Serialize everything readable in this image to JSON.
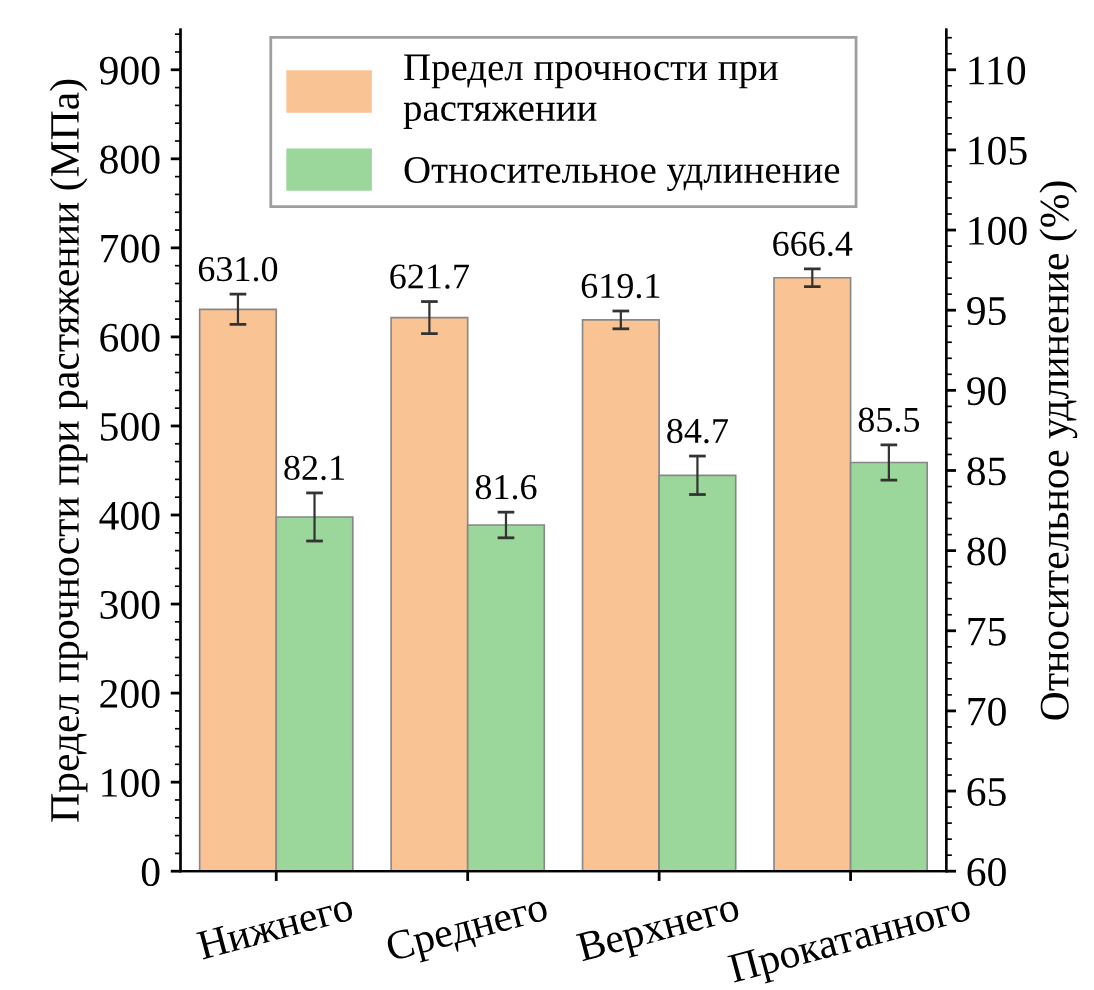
{
  "chart_data": {
    "type": "bar",
    "categories": [
      "Нижнего",
      "Среднего",
      "Верхнего",
      "Прокатанного"
    ],
    "ylabel": "Предел прочности при растяжении (МПа)",
    "y2label": "Относительное удлинение (%)",
    "series": [
      {
        "name": "Предел прочности при растяжении",
        "color": "#fac394",
        "values": [
          631.0,
          621.7,
          619.1,
          666.4
        ],
        "value_labels": [
          "631.0",
          "621.7",
          "619.1",
          "666.4"
        ],
        "errors": [
          17,
          18,
          10,
          10
        ]
      },
      {
        "name": "Относительное удлинение",
        "color": "#9bd69a",
        "values": [
          82.1,
          81.6,
          84.7,
          85.5
        ],
        "value_labels": [
          "82.1",
          "81.6",
          "84.7",
          "85.5"
        ],
        "errors": [
          1.5,
          0.8,
          1.2,
          1.1
        ],
        "axis": "y2"
      }
    ],
    "ylim": [
      0,
      945
    ],
    "yticks": [
      0,
      100,
      200,
      300,
      400,
      500,
      600,
      700,
      800,
      900
    ],
    "y2lim": [
      60,
      112.5
    ],
    "y2ticks": [
      60,
      65,
      70,
      75,
      80,
      85,
      90,
      95,
      100,
      105,
      110
    ],
    "legend": "top",
    "grid": false
  }
}
